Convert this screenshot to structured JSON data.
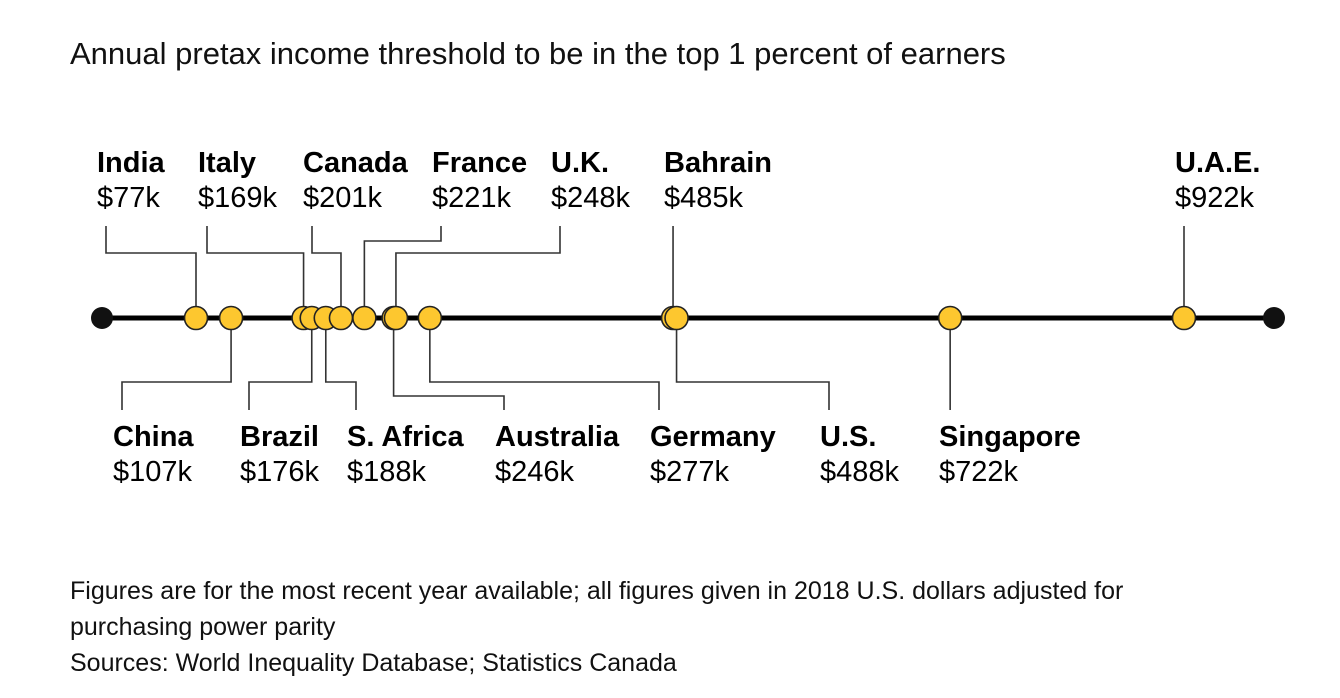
{
  "title": "Annual pretax income threshold to be in the top 1 percent of earners",
  "chart_data": {
    "type": "scatter",
    "title": "Annual pretax income threshold to be in the top 1 percent of earners",
    "unit": "USD thousands (2018, PPP)",
    "points": [
      {
        "country": "India",
        "label": "$77k",
        "value": 77,
        "side": "top"
      },
      {
        "country": "China",
        "label": "$107k",
        "value": 107,
        "side": "bottom"
      },
      {
        "country": "Italy",
        "label": "$169k",
        "value": 169,
        "side": "top"
      },
      {
        "country": "Brazil",
        "label": "$176k",
        "value": 176,
        "side": "bottom"
      },
      {
        "country": "S. Africa",
        "label": "$188k",
        "value": 188,
        "side": "bottom"
      },
      {
        "country": "Canada",
        "label": "$201k",
        "value": 201,
        "side": "top"
      },
      {
        "country": "France",
        "label": "$221k",
        "value": 221,
        "side": "top"
      },
      {
        "country": "Australia",
        "label": "$246k",
        "value": 246,
        "side": "bottom"
      },
      {
        "country": "U.K.",
        "label": "$248k",
        "value": 248,
        "side": "top"
      },
      {
        "country": "Germany",
        "label": "$277k",
        "value": 277,
        "side": "bottom"
      },
      {
        "country": "Bahrain",
        "label": "$485k",
        "value": 485,
        "side": "top"
      },
      {
        "country": "U.S.",
        "label": "$488k",
        "value": 488,
        "side": "bottom"
      },
      {
        "country": "Singapore",
        "label": "$722k",
        "value": 722,
        "side": "bottom"
      },
      {
        "country": "U.A.E.",
        "label": "$922k",
        "value": 922,
        "side": "top"
      }
    ],
    "colors": {
      "marker": "#fdc72f",
      "axis": "#000000",
      "leader": "#333333"
    }
  },
  "notes": {
    "line1": "Figures are for the most recent year available; all figures given in 2018 U.S. dollars adjusted for",
    "line2": "purchasing power parity",
    "sources": "Sources: World Inequality Database; Statistics Canada"
  }
}
